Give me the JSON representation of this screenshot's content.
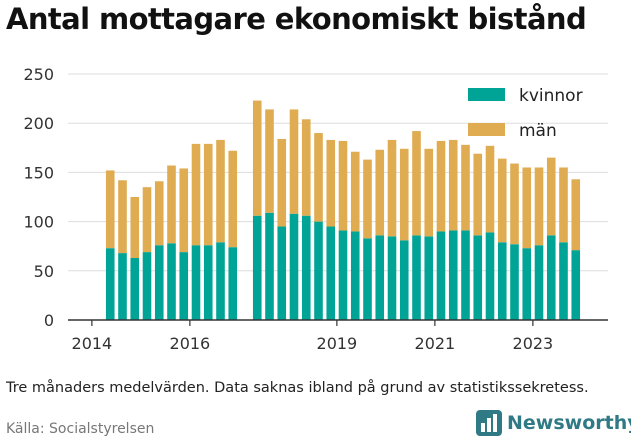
{
  "title": "Antal mottagare ekonomiskt bistånd",
  "note": "Tre månaders medelvärden. Data saknas ibland på grund av statistikssekretess.",
  "source": "Källa: Socialstyrelsen",
  "brand": {
    "name": "Newsworthy",
    "icon": "bar-chart-logo-icon"
  },
  "colors": {
    "kvinnor": "#00a497",
    "man": "#e0ac52",
    "grid": "#dddddd",
    "axis": "#333333"
  },
  "chart_data": {
    "type": "bar",
    "stacked": true,
    "ylim": [
      0,
      250
    ],
    "yticks": [
      0,
      50,
      100,
      150,
      200,
      250
    ],
    "xticks": [
      {
        "label": "2014",
        "period": 0
      },
      {
        "label": "2016",
        "period": 8
      },
      {
        "label": "2019",
        "period": 20
      },
      {
        "label": "2021",
        "period": 28
      },
      {
        "label": "2023",
        "period": 36
      }
    ],
    "grid": true,
    "legend": "top-right",
    "series": [
      {
        "name": "kvinnor",
        "color": "#00a497",
        "values": [
          null,
          73,
          68,
          63,
          69,
          76,
          78,
          69,
          76,
          76,
          79,
          74,
          null,
          106,
          109,
          95,
          108,
          106,
          100,
          95,
          91,
          90,
          83,
          86,
          85,
          81,
          86,
          85,
          90,
          91,
          91,
          86,
          89,
          79,
          77,
          73,
          76,
          86,
          79,
          71
        ]
      },
      {
        "name": "män",
        "color": "#e0ac52",
        "values": [
          null,
          79,
          74,
          62,
          66,
          65,
          79,
          85,
          103,
          103,
          104,
          98,
          null,
          117,
          105,
          89,
          106,
          98,
          90,
          88,
          91,
          81,
          80,
          87,
          98,
          93,
          106,
          89,
          92,
          92,
          87,
          83,
          88,
          85,
          82,
          82,
          79,
          79,
          76,
          72
        ]
      }
    ]
  }
}
